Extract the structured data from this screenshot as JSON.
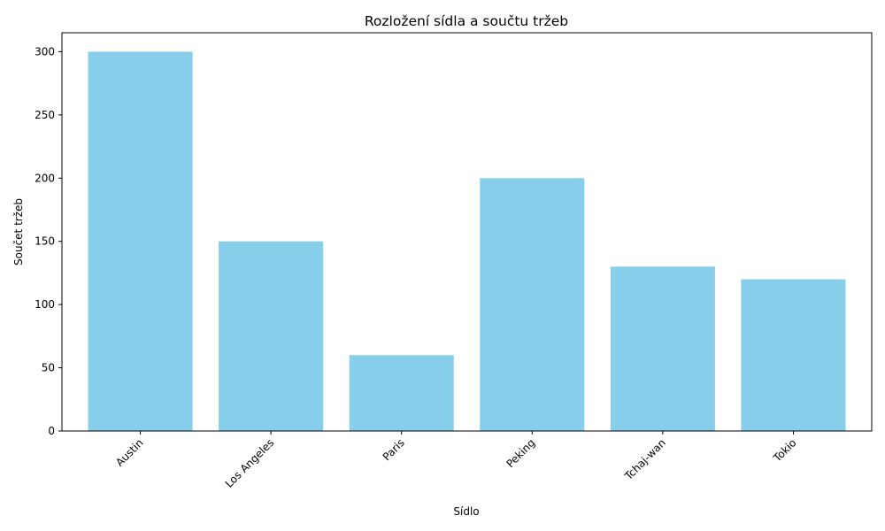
{
  "chart_data": {
    "type": "bar",
    "title": "Rozložení sídla a součtu tržeb",
    "xlabel": "Sídlo",
    "ylabel": "Součet tržeb",
    "categories": [
      "Austin",
      "Los Angeles",
      "Paris",
      "Peking",
      "Tchaj-wan",
      "Tokio"
    ],
    "values": [
      300,
      150,
      60,
      200,
      130,
      120
    ],
    "ylim": [
      0,
      315
    ],
    "yticks": [
      0,
      50,
      100,
      150,
      200,
      250,
      300
    ],
    "bar_color": "#87ceeb",
    "grid": false,
    "legend": false
  }
}
